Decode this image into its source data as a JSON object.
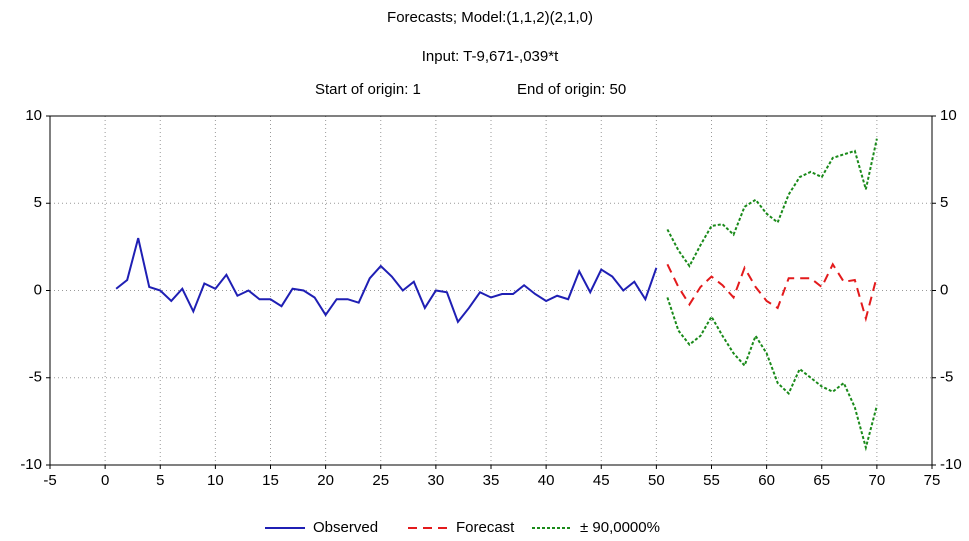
{
  "chart_data": {
    "type": "line",
    "title": "Forecasts; Model:(1,1,2)(2,1,0)",
    "subtitle": "Input: T-9,671-,039*t",
    "annotations": [
      "Start of origin: 1",
      "End of origin: 50"
    ],
    "xlim": [
      -5,
      75
    ],
    "xticks": [
      -5,
      0,
      5,
      10,
      15,
      20,
      25,
      30,
      35,
      40,
      45,
      50,
      55,
      60,
      65,
      70,
      75
    ],
    "ylim": [
      -10,
      10
    ],
    "yticks": [
      -10,
      -5,
      0,
      5,
      10
    ],
    "y2lim": [
      -10,
      10
    ],
    "y2ticks": [
      -10,
      -5,
      0,
      5,
      10
    ],
    "grid": true,
    "legend": "bottom",
    "series": [
      {
        "name": "Observed",
        "color": "#1f1fb4",
        "dash": "solid",
        "x": [
          1,
          2,
          3,
          4,
          5,
          6,
          7,
          8,
          9,
          10,
          11,
          12,
          13,
          14,
          15,
          16,
          17,
          18,
          19,
          20,
          21,
          22,
          23,
          24,
          25,
          26,
          27,
          28,
          29,
          30,
          31,
          32,
          33,
          34,
          35,
          36,
          37,
          38,
          39,
          40,
          41,
          42,
          43,
          44,
          45,
          46,
          47,
          48,
          49,
          50
        ],
        "values": [
          0.1,
          0.6,
          3.0,
          0.2,
          0.0,
          -0.6,
          0.1,
          -1.2,
          0.4,
          0.1,
          0.9,
          -0.3,
          0.0,
          -0.5,
          -0.5,
          -0.9,
          0.1,
          0.0,
          -0.4,
          -1.4,
          -0.5,
          -0.5,
          -0.7,
          0.7,
          1.4,
          0.8,
          0.0,
          0.5,
          -1.0,
          0.0,
          -0.1,
          -1.8,
          -1.0,
          -0.1,
          -0.4,
          -0.2,
          -0.2,
          0.3,
          -0.2,
          -0.6,
          -0.3,
          -0.5,
          1.1,
          -0.1,
          1.2,
          0.8,
          0.0,
          0.5,
          -0.5,
          1.3
        ]
      },
      {
        "name": "Forecast",
        "color": "#e31a1c",
        "dash": "dashed",
        "x": [
          51,
          52,
          53,
          54,
          55,
          56,
          57,
          58,
          59,
          60,
          61,
          62,
          63,
          64,
          65,
          66,
          67,
          68,
          69,
          70
        ],
        "values": [
          1.5,
          0.2,
          -0.8,
          0.2,
          0.8,
          0.3,
          -0.4,
          1.3,
          0.2,
          -0.6,
          -1.0,
          0.7,
          0.7,
          0.7,
          0.2,
          1.5,
          0.5,
          0.6,
          -1.6,
          0.8
        ]
      },
      {
        "name": "± 90,0000%",
        "color": "#1a8a1a",
        "dash": "dotted",
        "x": [
          51,
          52,
          53,
          54,
          55,
          56,
          57,
          58,
          59,
          60,
          61,
          62,
          63,
          64,
          65,
          66,
          67,
          68,
          69,
          70
        ],
        "upper": [
          3.5,
          2.3,
          1.4,
          2.6,
          3.7,
          3.8,
          3.2,
          4.8,
          5.2,
          4.4,
          3.9,
          5.5,
          6.5,
          6.8,
          6.5,
          7.6,
          7.8,
          8.0,
          5.8,
          8.7
        ],
        "lower": [
          -0.4,
          -2.3,
          -3.1,
          -2.6,
          -1.5,
          -2.6,
          -3.6,
          -4.3,
          -2.6,
          -3.6,
          -5.3,
          -5.9,
          -4.5,
          -5.0,
          -5.5,
          -5.8,
          -5.3,
          -6.7,
          -9.0,
          -6.6
        ]
      }
    ]
  }
}
